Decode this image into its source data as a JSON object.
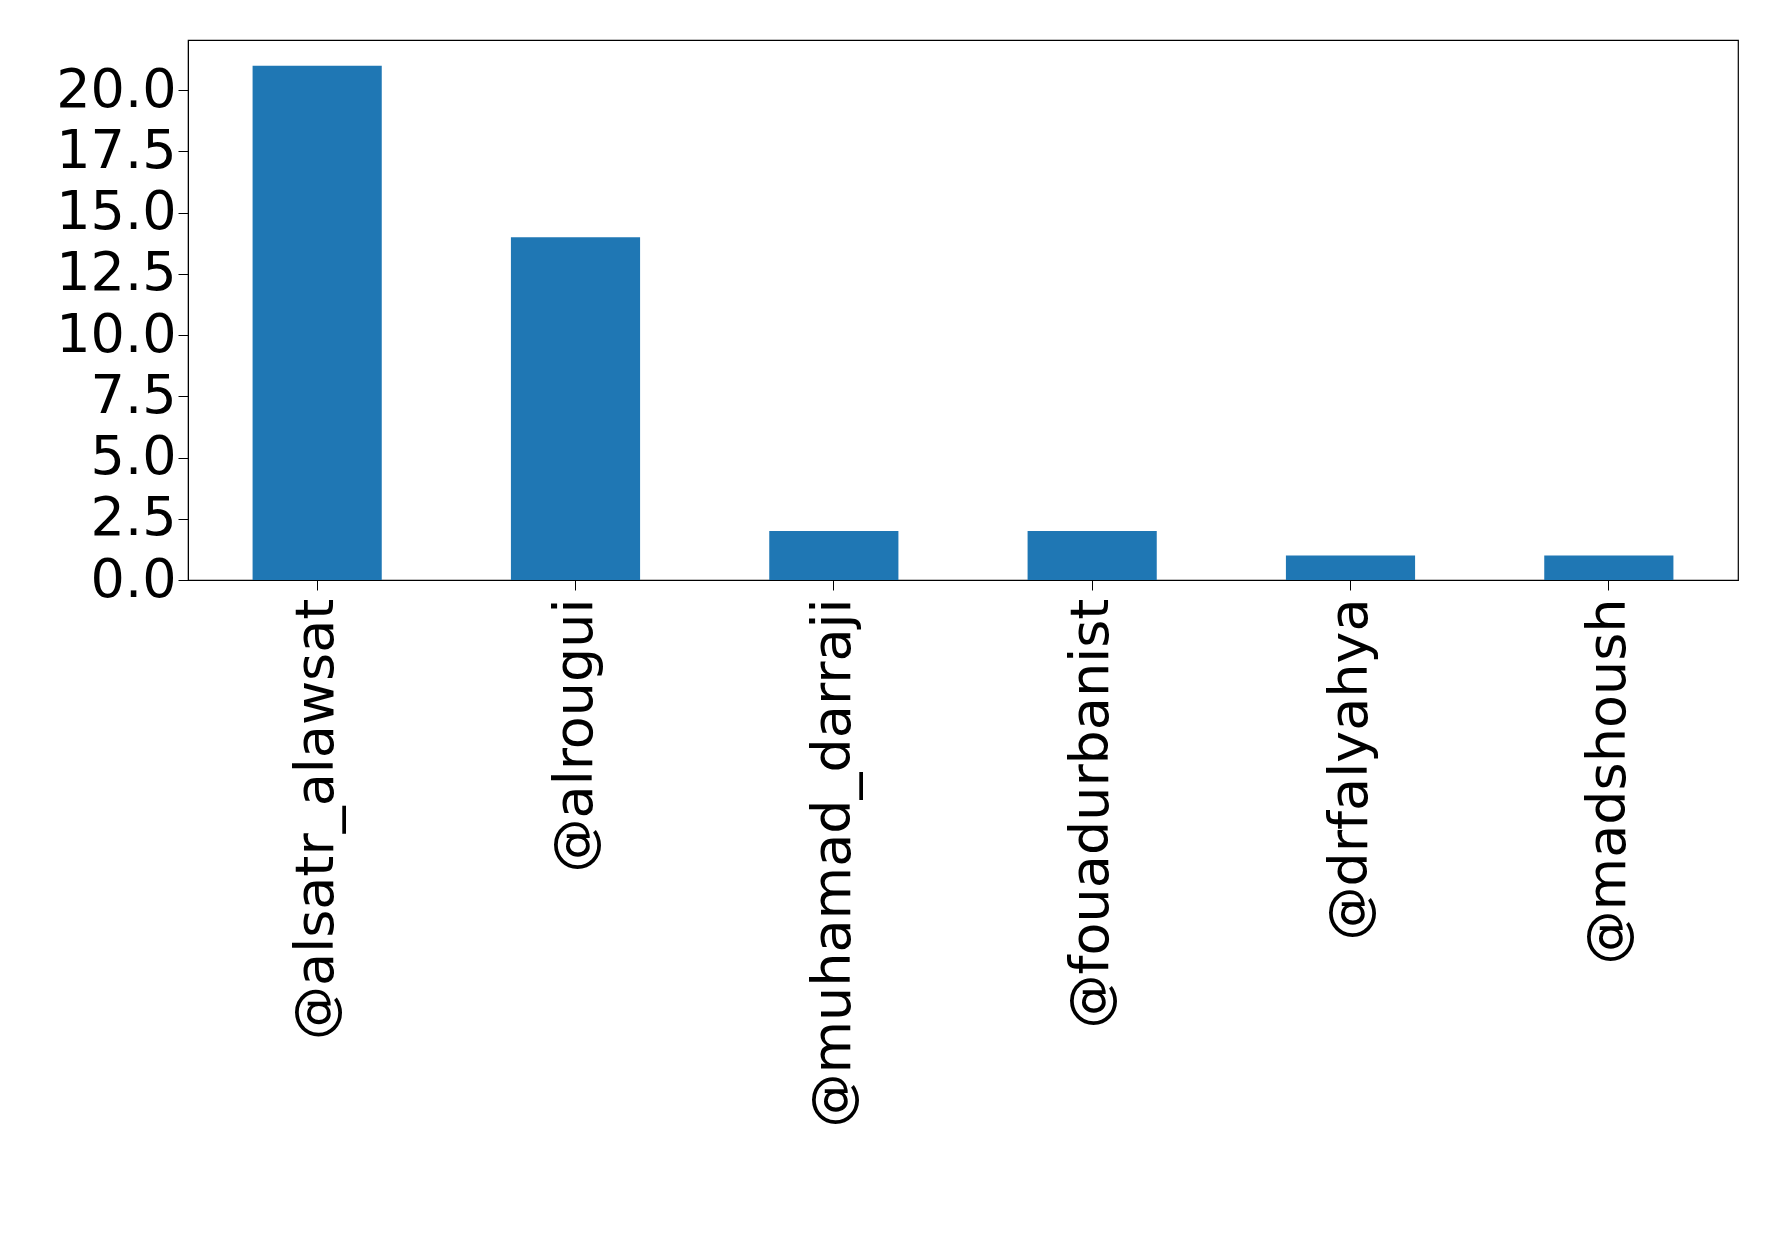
{
  "chart_data": {
    "type": "bar",
    "categories": [
      "@alsatr_alawsat",
      "@alrougui",
      "@muhamad_darraji",
      "@fouadurbanist",
      "@drfalyahya",
      "@madshoush"
    ],
    "values": [
      21,
      14,
      2,
      2,
      1,
      1
    ],
    "color": "#1f77b4",
    "ylim": [
      0,
      22.05
    ],
    "yticks": [
      {
        "value": 0,
        "label": "0.0"
      },
      {
        "value": 2.5,
        "label": "2.5"
      },
      {
        "value": 5,
        "label": "5.0"
      },
      {
        "value": 7.5,
        "label": "7.5"
      },
      {
        "value": 10,
        "label": "10.0"
      },
      {
        "value": 12.5,
        "label": "12.5"
      },
      {
        "value": 15,
        "label": "15.0"
      },
      {
        "value": 17.5,
        "label": "17.5"
      },
      {
        "value": 20,
        "label": "20.0"
      }
    ],
    "grid": false
  }
}
